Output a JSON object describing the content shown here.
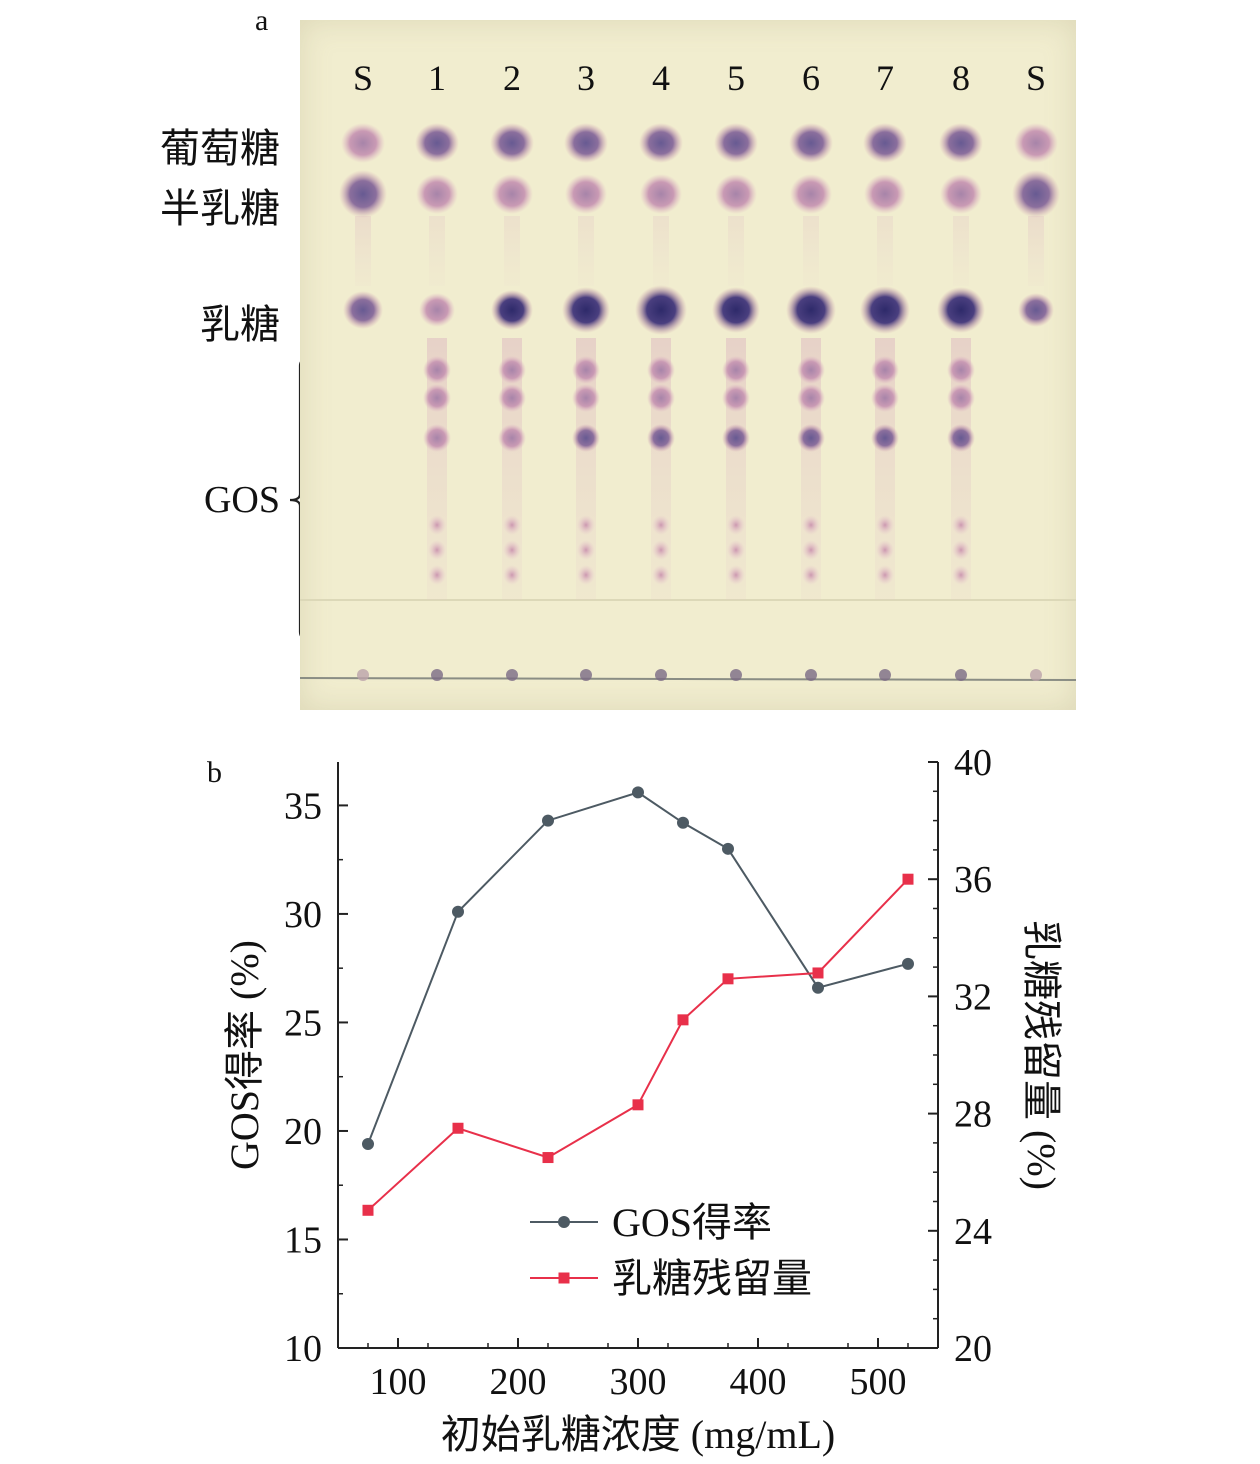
{
  "panel_a": {
    "label": "a",
    "lanes": [
      "S",
      "1",
      "2",
      "3",
      "4",
      "5",
      "6",
      "7",
      "8",
      "S"
    ],
    "band_labels": {
      "glucose": "葡萄糖",
      "galactose": "半乳糖",
      "lactose": "乳糖",
      "gos": "GOS"
    },
    "colors": {
      "plate": "#f1edcf",
      "spot": "#5a4a86",
      "spot_light": "#c98ea6"
    }
  },
  "panel_b": {
    "label": "b"
  },
  "chart_data": {
    "type": "line",
    "xlabel": "初始乳糖浓度 (mg/mL)",
    "ylabel_left": "GOS得率 (%)",
    "ylabel_right": "乳糖残留量 (%)",
    "x_ticks": [
      100,
      200,
      300,
      400,
      500
    ],
    "y_left_ticks": [
      10,
      15,
      20,
      25,
      30,
      35
    ],
    "y_right_ticks": [
      20,
      24,
      28,
      32,
      36,
      40
    ],
    "xlim": [
      50,
      550
    ],
    "ylim_left": [
      10,
      37
    ],
    "ylim_right": [
      20,
      40
    ],
    "legend_position": "lower-right",
    "series": [
      {
        "name": "GOS得率",
        "axis": "left",
        "marker": "circle",
        "color": "#4d5a63",
        "x": [
          75,
          150,
          225,
          300,
          337.5,
          375,
          450,
          525
        ],
        "y": [
          19.4,
          30.1,
          34.3,
          35.6,
          34.2,
          33.0,
          26.6,
          27.7
        ]
      },
      {
        "name": "乳糖残留量",
        "axis": "right",
        "marker": "square",
        "color": "#e8304a",
        "x": [
          75,
          150,
          225,
          300,
          337.5,
          375,
          450,
          525
        ],
        "y": [
          24.7,
          27.5,
          26.5,
          28.3,
          31.2,
          32.6,
          32.8,
          36.0
        ]
      }
    ]
  }
}
